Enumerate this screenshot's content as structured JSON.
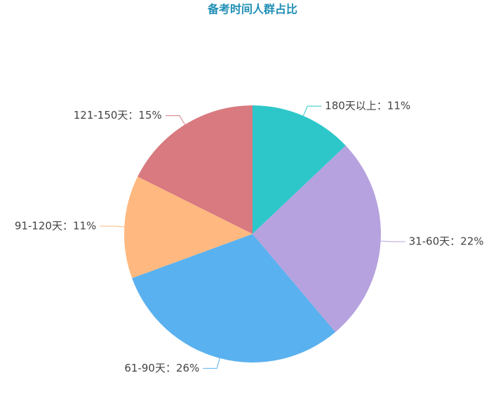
{
  "chart_data": {
    "type": "pie",
    "title": "备考时间人群占比",
    "categories": [
      "180天以上",
      "31-60天",
      "61-90天",
      "91-120天",
      "121-150天"
    ],
    "values": [
      11,
      22,
      26,
      11,
      15
    ],
    "value_labels": [
      "180天以上：11%",
      "31-60天：22%",
      "61-90天：26%",
      "91-120天：11%",
      "121-150天：15%"
    ],
    "colors": [
      "#2ec7c9",
      "#b6a2de",
      "#5ab1ef",
      "#ffb980",
      "#d87a80"
    ]
  }
}
